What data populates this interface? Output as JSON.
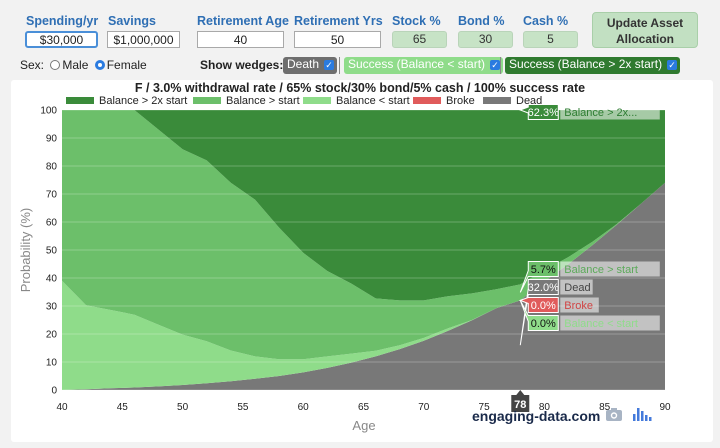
{
  "controls": {
    "spending_label": "Spending/yr",
    "spending_value": "$30,000",
    "savings_label": "Savings",
    "savings_value": "$1,000,000",
    "retirement_age_label": "Retirement Age",
    "retirement_age_value": "40",
    "retirement_yrs_label": "Retirement Yrs",
    "retirement_yrs_value": "50",
    "stock_label": "Stock %",
    "stock_value": "65",
    "bond_label": "Bond %",
    "bond_value": "30",
    "cash_label": "Cash %",
    "cash_value": "5",
    "update_button_line1": "Update Asset",
    "update_button_line2": "Allocation",
    "sex_label": "Sex:",
    "sex_male": "Male",
    "sex_female": "Female",
    "sex_selected": "Female",
    "wedges_label": "Show wedges:",
    "wedge_death": "Death",
    "wedge_success_lt": "Success (Balance < start)",
    "wedge_success_gt": "Success (Balance > 2x start)"
  },
  "brand": "engaging-data.com",
  "icons": {
    "camera": "camera-icon",
    "plotly": "plotly-bars-icon",
    "checkbox": "checkmark-icon"
  },
  "chart_data": {
    "type": "area",
    "title": "F / 3.0% withdrawal rate / 65% stock/30% bond/5% cash / 100% success rate",
    "xlabel": "Age",
    "ylabel": "Probability (%)",
    "xlim": [
      40,
      90
    ],
    "ylim": [
      0,
      100
    ],
    "xticks": [
      40,
      45,
      50,
      55,
      60,
      65,
      70,
      75,
      80,
      85,
      90
    ],
    "yticks": [
      0,
      10,
      20,
      30,
      40,
      50,
      60,
      70,
      80,
      90,
      100
    ],
    "stacked": true,
    "legend_position": "top",
    "x": [
      40,
      42,
      44,
      46,
      48,
      50,
      52,
      54,
      56,
      58,
      60,
      62,
      64,
      66,
      68,
      70,
      72,
      74,
      76,
      78,
      80,
      82,
      84,
      86,
      88,
      90
    ],
    "series": [
      {
        "name": "Dead",
        "color": "#787878",
        "values": [
          0,
          0.3,
          0.6,
          0.9,
          1.3,
          1.8,
          2.4,
          3.1,
          4,
          5,
          6.3,
          7.9,
          9.8,
          12,
          14.6,
          17.6,
          21.1,
          24.9,
          29.2,
          32,
          38.8,
          45,
          51.8,
          59,
          66.5,
          74
        ]
      },
      {
        "name": "Broke",
        "color": "#e05b5b",
        "values": [
          0,
          0,
          0,
          0,
          0,
          0,
          0,
          0,
          0,
          0,
          0,
          0,
          0,
          0,
          0,
          0,
          0,
          0,
          0,
          0,
          0,
          0,
          0,
          0,
          0,
          0
        ]
      },
      {
        "name": "Balance < start",
        "color": "#8fdc8a",
        "values": [
          39,
          30,
          28,
          26,
          22,
          18,
          15,
          11,
          8,
          6,
          4.7,
          4.1,
          3.2,
          2,
          1.4,
          1,
          0.9,
          0.1,
          0,
          0,
          0,
          0,
          0,
          0,
          0,
          0
        ]
      },
      {
        "name": "Balance > start",
        "color": "#6cbf6a",
        "values": [
          61,
          69.7,
          71.4,
          73.1,
          69.7,
          66.2,
          64.6,
          59.9,
          56,
          47,
          38,
          30.5,
          25,
          18.7,
          16,
          13.4,
          11.5,
          9.5,
          6.8,
          5.7,
          4,
          2.5,
          1.2,
          0.3,
          0,
          0
        ]
      },
      {
        "name": "Balance > 2x start",
        "color": "#3a8b3a",
        "values": [
          0,
          0,
          0,
          0,
          7,
          14,
          18,
          26,
          32,
          42,
          51,
          57.5,
          62,
          67.3,
          68,
          68,
          66.5,
          65.5,
          64,
          62.3,
          57.2,
          52.5,
          47,
          40.7,
          33.5,
          26
        ]
      }
    ],
    "cursor": {
      "age": 78,
      "labels": [
        {
          "series": "Balance > 2x start",
          "value": "62.3%",
          "label": "Balance > 2x...",
          "text_color": "#2e7d32"
        },
        {
          "series": "Balance > start",
          "value": "5.7%",
          "label": "Balance > start",
          "text_color": "#5caa5a"
        },
        {
          "series": "Dead",
          "value": "32.0%",
          "label": "Dead",
          "text_color": "#444444"
        },
        {
          "series": "Broke",
          "value": "0.0%",
          "label": "Broke",
          "text_color": "#d04545"
        },
        {
          "series": "Balance < start",
          "value": "0.0%",
          "label": "Balance < start",
          "text_color": "#8fdc8a"
        }
      ]
    }
  }
}
